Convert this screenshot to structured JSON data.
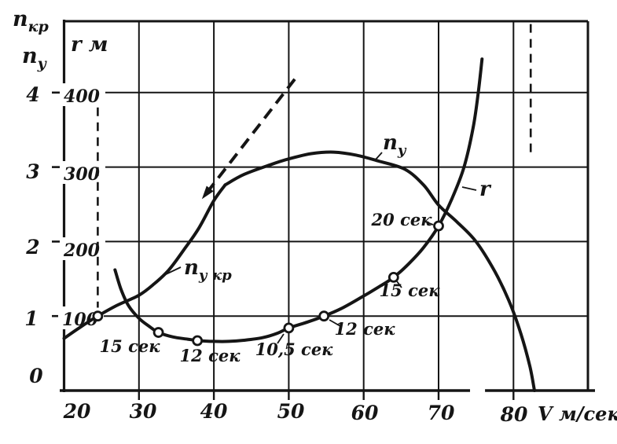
{
  "colors": {
    "ink": "#151515",
    "paper": "#ffffff"
  },
  "x_axis": {
    "unit_label": "V м/сек",
    "tick_labels": [
      "20",
      "30",
      "40",
      "50",
      "60",
      "70",
      "80"
    ]
  },
  "y_axis": {
    "title_top": {
      "base": "n",
      "sub": "кр"
    },
    "title_bottom": {
      "base": "n",
      "sub": "у"
    },
    "n_tick_labels": [
      "0",
      "1",
      "2",
      "3",
      "4"
    ],
    "r_title": {
      "base": "r",
      "suffix": " м"
    },
    "r_tick_labels": [
      "100",
      "200",
      "300",
      "400"
    ]
  },
  "chart_data": {
    "type": "line",
    "title": "",
    "xlabel": "V м/сек",
    "x_range": [
      20,
      90
    ],
    "grid": true,
    "left_scale_n": {
      "label": "n",
      "ticks": [
        0,
        1,
        2,
        3,
        4
      ],
      "range": [
        0,
        4.95
      ]
    },
    "left_scale_r": {
      "label": "r, м",
      "ticks": [
        100,
        200,
        300,
        400
      ],
      "range": [
        0,
        495
      ]
    },
    "series": [
      {
        "name": "n_y_critical",
        "label": {
          "base": "n",
          "sub": "у кр"
        },
        "scale": "n",
        "points": [
          [
            20,
            0.7
          ],
          [
            22,
            0.84
          ],
          [
            24.5,
            1.0
          ],
          [
            27,
            1.14
          ],
          [
            30,
            1.28
          ],
          [
            32,
            1.43
          ],
          [
            34,
            1.62
          ],
          [
            36,
            1.89
          ],
          [
            38,
            2.18
          ],
          [
            40,
            2.55
          ],
          [
            41.5,
            2.76
          ]
        ]
      },
      {
        "name": "n_y_available",
        "label": {
          "base": "n",
          "sub": "у"
        },
        "scale": "n",
        "points": [
          [
            41.5,
            2.76
          ],
          [
            44,
            2.9
          ],
          [
            47.5,
            3.03
          ],
          [
            50,
            3.11
          ],
          [
            53,
            3.18
          ],
          [
            56,
            3.2
          ],
          [
            59,
            3.16
          ],
          [
            62,
            3.08
          ],
          [
            65.5,
            2.97
          ],
          [
            68,
            2.76
          ],
          [
            70,
            2.49
          ],
          [
            72.5,
            2.26
          ],
          [
            75,
            2.0
          ],
          [
            77.5,
            1.6
          ],
          [
            79.5,
            1.18
          ],
          [
            81,
            0.76
          ],
          [
            82.2,
            0.32
          ],
          [
            82.8,
            0.0
          ]
        ]
      },
      {
        "name": "turn_radius",
        "label": {
          "base": "r",
          "sub": ""
        },
        "scale": "r",
        "points": [
          [
            26.8,
            162
          ],
          [
            27.6,
            136
          ],
          [
            28.6,
            114
          ],
          [
            30,
            97
          ],
          [
            31.4,
            86
          ],
          [
            32.6,
            78
          ],
          [
            34.5,
            72
          ],
          [
            36.5,
            69
          ],
          [
            38,
            67
          ],
          [
            40,
            66
          ],
          [
            42,
            66
          ],
          [
            44,
            67.5
          ],
          [
            46.5,
            71
          ],
          [
            48.5,
            77
          ],
          [
            50,
            84
          ],
          [
            52.5,
            92
          ],
          [
            54.7,
            100
          ],
          [
            57,
            110
          ],
          [
            59.5,
            124
          ],
          [
            62,
            139
          ],
          [
            64,
            152
          ],
          [
            66,
            170
          ],
          [
            68,
            192
          ],
          [
            70,
            221
          ],
          [
            71.8,
            258
          ],
          [
            73.4,
            300
          ],
          [
            74.6,
            352
          ],
          [
            75.3,
            400
          ],
          [
            75.8,
            445
          ]
        ]
      }
    ],
    "markers": [
      {
        "v": 24.5,
        "value": 1.0,
        "scale": "n",
        "label": ""
      },
      {
        "v": 32.6,
        "value": 78,
        "scale": "r",
        "label": "15 сек"
      },
      {
        "v": 37.8,
        "value": 67,
        "scale": "r",
        "label": "12 сек"
      },
      {
        "v": 50,
        "value": 84,
        "scale": "r",
        "label": "10,5 сек"
      },
      {
        "v": 54.7,
        "value": 100,
        "scale": "r",
        "label": "12 сек"
      },
      {
        "v": 64,
        "value": 152,
        "scale": "r",
        "label": "15 сек"
      },
      {
        "v": 70,
        "value": 221,
        "scale": "r",
        "label": "20 сек"
      }
    ],
    "dashed_vlines": [
      {
        "v": 24.5,
        "n_from": 1.05,
        "n_to": 3.8
      },
      {
        "v": 82.3,
        "n_from": 3.12,
        "n_to": 4.92
      }
    ],
    "dashed_arrow": {
      "from_v": 50.8,
      "from_n": 4.18,
      "to_v": 38.4,
      "to_n": 2.57
    },
    "axis_break_x": [
      74.2,
      76.2
    ]
  }
}
